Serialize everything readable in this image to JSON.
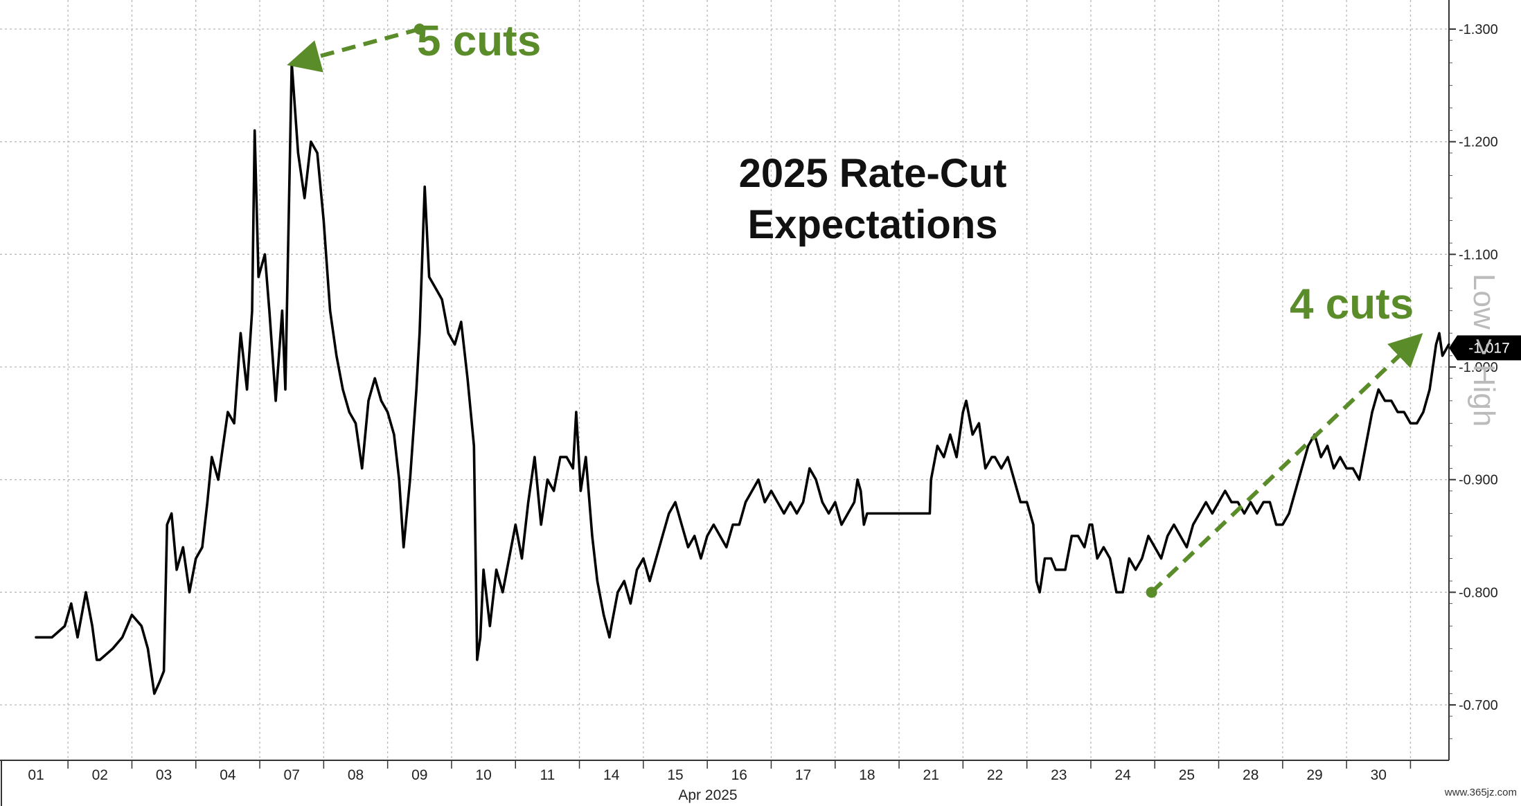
{
  "chart_data": {
    "type": "line",
    "title": "2025 Rate-Cut\nExpectations",
    "title_lines": [
      "2025 Rate-Cut",
      "Expectations"
    ],
    "xlabel": "Apr 2025",
    "ylabel": "",
    "categories": [
      "01",
      "02",
      "03",
      "04",
      "07",
      "08",
      "09",
      "10",
      "11",
      "14",
      "15",
      "16",
      "17",
      "18",
      "21",
      "22",
      "23",
      "24",
      "25",
      "28",
      "29",
      "30"
    ],
    "ylim": [
      -0.65,
      -1.31
    ],
    "y_axis_side": "right",
    "y_ticks": [
      -0.7,
      -0.8,
      -0.9,
      -1.0,
      -1.1,
      -1.2,
      -1.3
    ],
    "y_tick_labels": [
      "-0.700",
      "-0.800",
      "-0.900",
      "-1.000",
      "-1.100",
      "-1.200",
      "-1.300"
    ],
    "grid": true,
    "series": [
      {
        "color": "#000000",
        "last_value_label": "-1.017",
        "points": [
          [
            0.0,
            -0.76
          ],
          [
            0.25,
            -0.76
          ],
          [
            0.45,
            -0.77
          ],
          [
            0.55,
            -0.79
          ],
          [
            0.65,
            -0.76
          ],
          [
            0.78,
            -0.8
          ],
          [
            0.88,
            -0.77
          ],
          [
            0.95,
            -0.74
          ],
          [
            1.0,
            -0.74
          ],
          [
            1.2,
            -0.75
          ],
          [
            1.35,
            -0.76
          ],
          [
            1.5,
            -0.78
          ],
          [
            1.65,
            -0.77
          ],
          [
            1.75,
            -0.75
          ],
          [
            1.85,
            -0.71
          ],
          [
            1.93,
            -0.72
          ],
          [
            2.0,
            -0.73
          ],
          [
            2.05,
            -0.86
          ],
          [
            2.12,
            -0.87
          ],
          [
            2.2,
            -0.82
          ],
          [
            2.3,
            -0.84
          ],
          [
            2.4,
            -0.8
          ],
          [
            2.5,
            -0.83
          ],
          [
            2.6,
            -0.84
          ],
          [
            2.68,
            -0.88
          ],
          [
            2.75,
            -0.92
          ],
          [
            2.85,
            -0.9
          ],
          [
            2.95,
            -0.94
          ],
          [
            3.0,
            -0.96
          ],
          [
            3.1,
            -0.95
          ],
          [
            3.2,
            -1.03
          ],
          [
            3.3,
            -0.98
          ],
          [
            3.38,
            -1.05
          ],
          [
            3.42,
            -1.21
          ],
          [
            3.48,
            -1.08
          ],
          [
            3.58,
            -1.1
          ],
          [
            3.65,
            -1.05
          ],
          [
            3.75,
            -0.97
          ],
          [
            3.85,
            -1.05
          ],
          [
            3.9,
            -0.98
          ],
          [
            4.0,
            -1.27
          ],
          [
            4.1,
            -1.19
          ],
          [
            4.2,
            -1.15
          ],
          [
            4.3,
            -1.2
          ],
          [
            4.4,
            -1.19
          ],
          [
            4.5,
            -1.13
          ],
          [
            4.6,
            -1.05
          ],
          [
            4.7,
            -1.01
          ],
          [
            4.8,
            -0.98
          ],
          [
            4.9,
            -0.96
          ],
          [
            5.0,
            -0.95
          ],
          [
            5.1,
            -0.91
          ],
          [
            5.2,
            -0.97
          ],
          [
            5.3,
            -0.99
          ],
          [
            5.4,
            -0.97
          ],
          [
            5.5,
            -0.96
          ],
          [
            5.6,
            -0.94
          ],
          [
            5.68,
            -0.9
          ],
          [
            5.75,
            -0.84
          ],
          [
            5.85,
            -0.9
          ],
          [
            5.95,
            -0.98
          ],
          [
            6.0,
            -1.03
          ],
          [
            6.08,
            -1.16
          ],
          [
            6.15,
            -1.08
          ],
          [
            6.25,
            -1.07
          ],
          [
            6.35,
            -1.06
          ],
          [
            6.45,
            -1.03
          ],
          [
            6.55,
            -1.02
          ],
          [
            6.65,
            -1.04
          ],
          [
            6.75,
            -0.99
          ],
          [
            6.85,
            -0.93
          ],
          [
            6.9,
            -0.74
          ],
          [
            6.95,
            -0.76
          ],
          [
            7.0,
            -0.82
          ],
          [
            7.1,
            -0.77
          ],
          [
            7.2,
            -0.82
          ],
          [
            7.3,
            -0.8
          ],
          [
            7.4,
            -0.83
          ],
          [
            7.5,
            -0.86
          ],
          [
            7.6,
            -0.83
          ],
          [
            7.7,
            -0.88
          ],
          [
            7.8,
            -0.92
          ],
          [
            7.9,
            -0.86
          ],
          [
            8.0,
            -0.9
          ],
          [
            8.1,
            -0.89
          ],
          [
            8.2,
            -0.92
          ],
          [
            8.3,
            -0.92
          ],
          [
            8.4,
            -0.91
          ],
          [
            8.45,
            -0.96
          ],
          [
            8.52,
            -0.89
          ],
          [
            8.6,
            -0.92
          ],
          [
            8.7,
            -0.85
          ],
          [
            8.78,
            -0.81
          ],
          [
            8.88,
            -0.78
          ],
          [
            8.97,
            -0.76
          ],
          [
            9.0,
            -0.77
          ],
          [
            9.1,
            -0.8
          ],
          [
            9.2,
            -0.81
          ],
          [
            9.3,
            -0.79
          ],
          [
            9.4,
            -0.82
          ],
          [
            9.5,
            -0.83
          ],
          [
            9.6,
            -0.81
          ],
          [
            9.7,
            -0.83
          ],
          [
            9.8,
            -0.85
          ],
          [
            9.9,
            -0.87
          ],
          [
            10.0,
            -0.88
          ],
          [
            10.1,
            -0.86
          ],
          [
            10.2,
            -0.84
          ],
          [
            10.3,
            -0.85
          ],
          [
            10.4,
            -0.83
          ],
          [
            10.5,
            -0.85
          ],
          [
            10.6,
            -0.86
          ],
          [
            10.7,
            -0.85
          ],
          [
            10.8,
            -0.84
          ],
          [
            10.9,
            -0.86
          ],
          [
            11.0,
            -0.86
          ],
          [
            11.1,
            -0.88
          ],
          [
            11.2,
            -0.89
          ],
          [
            11.3,
            -0.9
          ],
          [
            11.4,
            -0.88
          ],
          [
            11.5,
            -0.89
          ],
          [
            11.6,
            -0.88
          ],
          [
            11.7,
            -0.87
          ],
          [
            11.8,
            -0.88
          ],
          [
            11.9,
            -0.87
          ],
          [
            12.0,
            -0.88
          ],
          [
            12.1,
            -0.91
          ],
          [
            12.2,
            -0.9
          ],
          [
            12.3,
            -0.88
          ],
          [
            12.4,
            -0.87
          ],
          [
            12.5,
            -0.88
          ],
          [
            12.6,
            -0.86
          ],
          [
            12.7,
            -0.87
          ],
          [
            12.8,
            -0.88
          ],
          [
            12.85,
            -0.9
          ],
          [
            12.9,
            -0.89
          ],
          [
            12.95,
            -0.86
          ],
          [
            13.0,
            -0.87
          ],
          [
            13.25,
            -0.87
          ],
          [
            13.5,
            -0.87
          ],
          [
            13.75,
            -0.87
          ],
          [
            13.98,
            -0.87
          ],
          [
            14.0,
            -0.9
          ],
          [
            14.1,
            -0.93
          ],
          [
            14.2,
            -0.92
          ],
          [
            14.3,
            -0.94
          ],
          [
            14.4,
            -0.92
          ],
          [
            14.5,
            -0.96
          ],
          [
            14.55,
            -0.97
          ],
          [
            14.65,
            -0.94
          ],
          [
            14.75,
            -0.95
          ],
          [
            14.85,
            -0.91
          ],
          [
            14.95,
            -0.92
          ],
          [
            15.0,
            -0.92
          ],
          [
            15.1,
            -0.91
          ],
          [
            15.2,
            -0.92
          ],
          [
            15.3,
            -0.9
          ],
          [
            15.4,
            -0.88
          ],
          [
            15.5,
            -0.88
          ],
          [
            15.6,
            -0.86
          ],
          [
            15.65,
            -0.81
          ],
          [
            15.7,
            -0.8
          ],
          [
            15.78,
            -0.83
          ],
          [
            15.88,
            -0.83
          ],
          [
            15.95,
            -0.82
          ],
          [
            16.0,
            -0.82
          ],
          [
            16.1,
            -0.82
          ],
          [
            16.2,
            -0.85
          ],
          [
            16.3,
            -0.85
          ],
          [
            16.4,
            -0.84
          ],
          [
            16.48,
            -0.86
          ],
          [
            16.52,
            -0.86
          ],
          [
            16.6,
            -0.83
          ],
          [
            16.7,
            -0.84
          ],
          [
            16.8,
            -0.83
          ],
          [
            16.9,
            -0.8
          ],
          [
            16.98,
            -0.8
          ],
          [
            17.0,
            -0.8
          ],
          [
            17.1,
            -0.83
          ],
          [
            17.2,
            -0.82
          ],
          [
            17.3,
            -0.83
          ],
          [
            17.4,
            -0.85
          ],
          [
            17.5,
            -0.84
          ],
          [
            17.6,
            -0.83
          ],
          [
            17.7,
            -0.85
          ],
          [
            17.8,
            -0.86
          ],
          [
            17.9,
            -0.85
          ],
          [
            18.0,
            -0.84
          ],
          [
            18.1,
            -0.86
          ],
          [
            18.2,
            -0.87
          ],
          [
            18.3,
            -0.88
          ],
          [
            18.4,
            -0.87
          ],
          [
            18.5,
            -0.88
          ],
          [
            18.6,
            -0.89
          ],
          [
            18.7,
            -0.88
          ],
          [
            18.8,
            -0.88
          ],
          [
            18.9,
            -0.87
          ],
          [
            19.0,
            -0.88
          ],
          [
            19.1,
            -0.87
          ],
          [
            19.2,
            -0.88
          ],
          [
            19.3,
            -0.88
          ],
          [
            19.4,
            -0.86
          ],
          [
            19.5,
            -0.86
          ],
          [
            19.6,
            -0.87
          ],
          [
            19.7,
            -0.89
          ],
          [
            19.8,
            -0.91
          ],
          [
            19.9,
            -0.93
          ],
          [
            20.0,
            -0.94
          ],
          [
            20.1,
            -0.92
          ],
          [
            20.2,
            -0.93
          ],
          [
            20.3,
            -0.91
          ],
          [
            20.4,
            -0.92
          ],
          [
            20.5,
            -0.91
          ],
          [
            20.6,
            -0.91
          ],
          [
            20.7,
            -0.9
          ],
          [
            20.8,
            -0.93
          ],
          [
            20.9,
            -0.96
          ],
          [
            21.0,
            -0.98
          ],
          [
            21.1,
            -0.97
          ],
          [
            21.2,
            -0.97
          ],
          [
            21.3,
            -0.96
          ],
          [
            21.4,
            -0.96
          ],
          [
            21.5,
            -0.95
          ],
          [
            21.6,
            -0.95
          ],
          [
            21.7,
            -0.96
          ],
          [
            21.8,
            -0.98
          ],
          [
            21.9,
            -1.02
          ],
          [
            21.95,
            -1.03
          ],
          [
            22.0,
            -1.01
          ],
          [
            22.1,
            -1.02
          ]
        ]
      }
    ],
    "annotations": [
      {
        "text": "5 cuts",
        "color": "#5b8c2a",
        "arrow_from": [
          6.0,
          -1.3
        ],
        "arrow_to": [
          4.05,
          -1.27
        ]
      },
      {
        "text": "4 cuts",
        "color": "#5b8c2a",
        "arrow_from": [
          17.45,
          -0.8
        ],
        "arrow_to": [
          21.6,
          -1.025
        ]
      }
    ],
    "side_label": "Low > High",
    "watermark": "www.365jz.com"
  }
}
